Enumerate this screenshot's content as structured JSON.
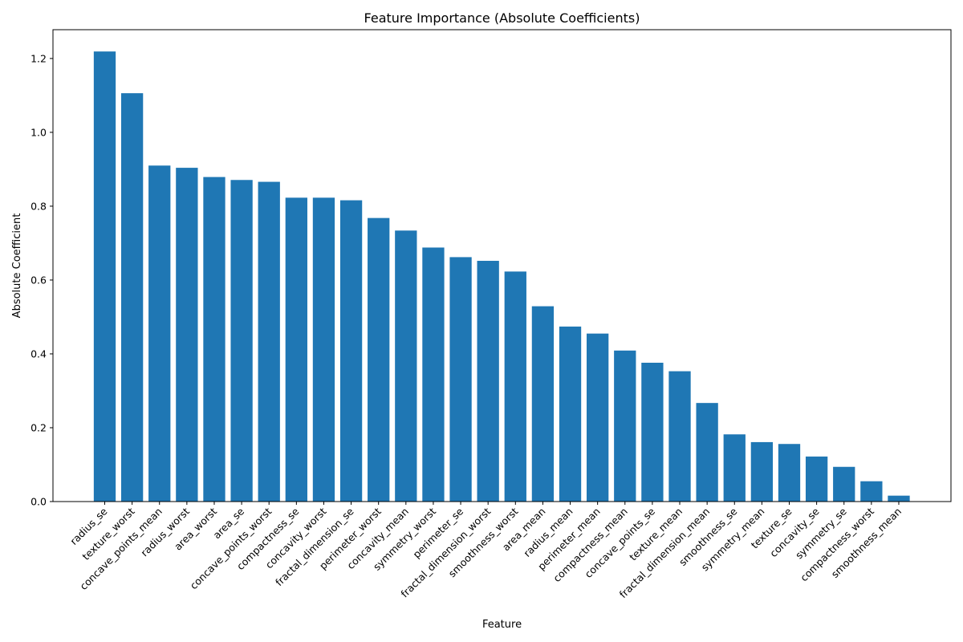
{
  "chart_data": {
    "type": "bar",
    "title": "Feature Importance (Absolute Coefficients)",
    "xlabel": "Feature",
    "ylabel": "Absolute Coefficient",
    "ylim": [
      0,
      1.278
    ],
    "yticks": [
      0.0,
      0.2,
      0.4,
      0.6,
      0.8,
      1.0,
      1.2
    ],
    "ytick_labels": [
      "0.0",
      "0.2",
      "0.4",
      "0.6",
      "0.8",
      "1.0",
      "1.2"
    ],
    "bar_color": "#1f77b4",
    "grid": false,
    "categories": [
      "radius_se",
      "texture_worst",
      "concave_points_mean",
      "radius_worst",
      "area_worst",
      "area_se",
      "concave_points_worst",
      "compactness_se",
      "concavity_worst",
      "fractal_dimension_se",
      "perimeter_worst",
      "concavity_mean",
      "symmetry_worst",
      "perimeter_se",
      "fractal_dimension_worst",
      "smoothness_worst",
      "area_mean",
      "radius_mean",
      "perimeter_mean",
      "compactness_mean",
      "concave_points_se",
      "texture_mean",
      "fractal_dimension_mean",
      "smoothness_se",
      "symmetry_mean",
      "texture_se",
      "concavity_se",
      "symmetry_se",
      "compactness_worst",
      "smoothness_mean"
    ],
    "values": [
      1.219,
      1.106,
      0.91,
      0.904,
      0.879,
      0.871,
      0.866,
      0.823,
      0.823,
      0.816,
      0.768,
      0.734,
      0.688,
      0.662,
      0.652,
      0.623,
      0.529,
      0.474,
      0.455,
      0.409,
      0.376,
      0.353,
      0.267,
      0.182,
      0.161,
      0.156,
      0.122,
      0.094,
      0.055,
      0.016
    ]
  }
}
